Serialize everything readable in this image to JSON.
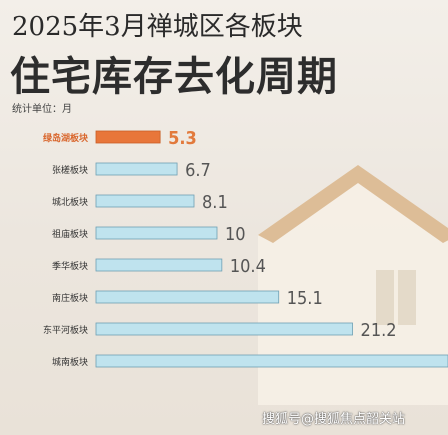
{
  "header": {
    "title": "2025年3月禅城区各板块"
  },
  "main": {
    "title": "住宅库存去化周期"
  },
  "unit": {
    "label": "统计单位：月"
  },
  "chart_data": {
    "type": "bar",
    "orientation": "horizontal",
    "categories": [
      "绿岛湖板块",
      "张槎板块",
      "城北板块",
      "祖庙板块",
      "季华板块",
      "南庄板块",
      "东平河板块",
      "城南板块"
    ],
    "values": [
      5.3,
      6.7,
      8.1,
      10,
      10.4,
      15.1,
      21.2,
      null
    ],
    "value_labels": [
      "5.3",
      "6.7",
      "8.1",
      "10",
      "10.4",
      "15.1",
      "21.2",
      ""
    ],
    "highlight_index": 0,
    "highlight_color": "#e8763a",
    "bar_color": "#bfe3ee",
    "title": "住宅库存去化周期",
    "xlabel": "",
    "ylabel": ""
  },
  "watermark": {
    "text": "搜狐号@搜狐焦点韶关站"
  }
}
